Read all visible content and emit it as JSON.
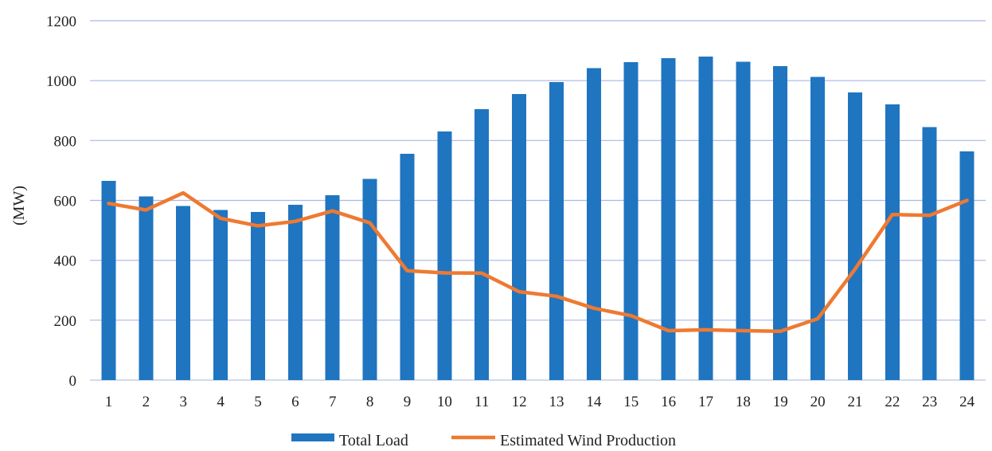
{
  "chart_data": {
    "type": "bar",
    "title": "",
    "xlabel": "",
    "ylabel": "(MW)",
    "ylim": [
      0,
      1200
    ],
    "yticks": [
      0,
      200,
      400,
      600,
      800,
      1000,
      1200
    ],
    "grid": true,
    "legend_position": "bottom",
    "categories": [
      "1",
      "2",
      "3",
      "4",
      "5",
      "6",
      "7",
      "8",
      "9",
      "10",
      "11",
      "12",
      "13",
      "14",
      "15",
      "16",
      "17",
      "18",
      "19",
      "20",
      "21",
      "22",
      "23",
      "24"
    ],
    "series": [
      {
        "name": "Total Load",
        "type": "bar",
        "color": "#1f75c0",
        "values": [
          665,
          613,
          582,
          568,
          562,
          585,
          617,
          672,
          755,
          830,
          905,
          955,
          995,
          1042,
          1062,
          1075,
          1080,
          1063,
          1048,
          1013,
          960,
          920,
          845,
          763
        ]
      },
      {
        "name": "Estimated Wind Production",
        "type": "line",
        "color": "#ee7a32",
        "values": [
          590,
          568,
          625,
          540,
          515,
          530,
          565,
          525,
          365,
          358,
          357,
          295,
          280,
          240,
          215,
          165,
          168,
          165,
          163,
          205,
          370,
          553,
          550,
          600
        ]
      }
    ]
  }
}
